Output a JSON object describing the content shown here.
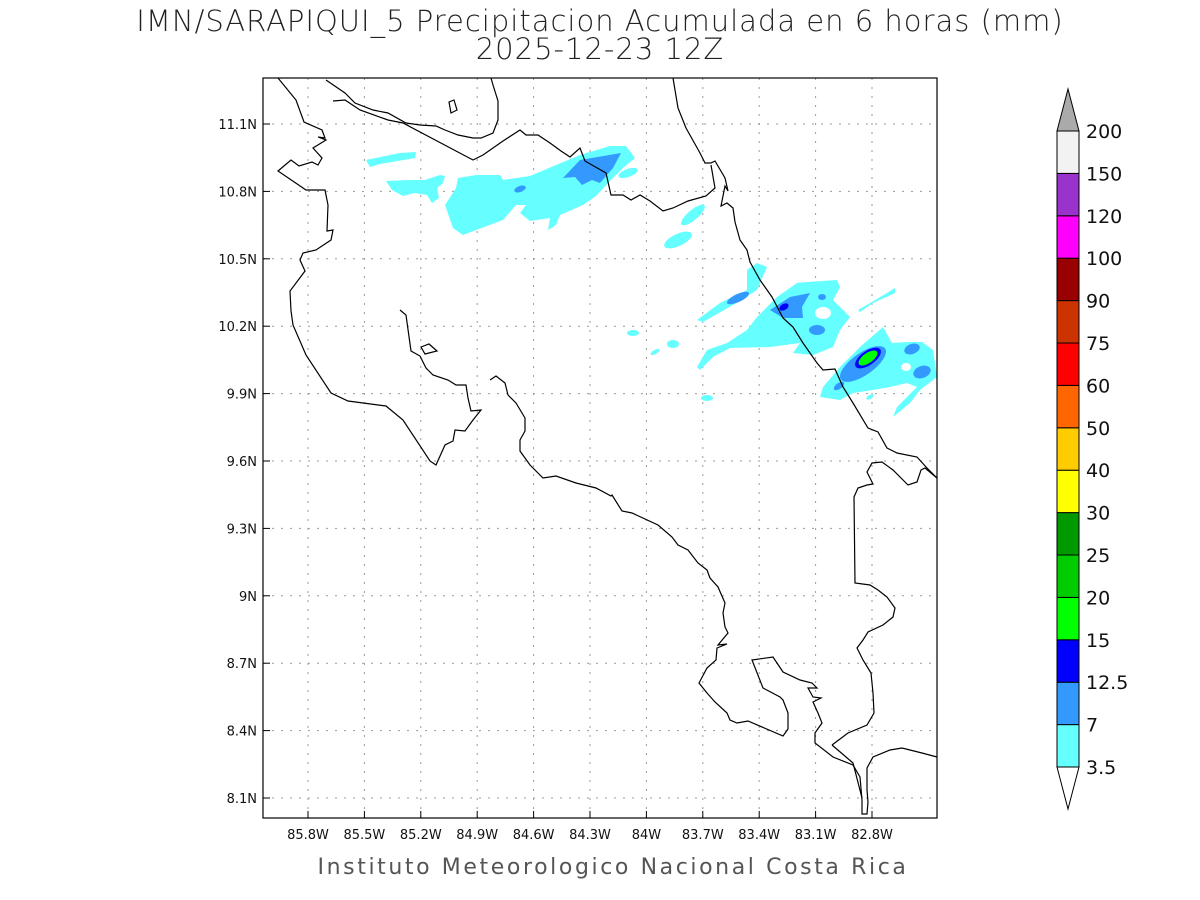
{
  "title": {
    "line1": "IMN/SARAPIQUI_5 Precipitacion Acumulada en 6 horas (mm)",
    "line2": "2025-12-23 12Z"
  },
  "footer": "Instituto Meteorologico Nacional Costa Rica",
  "map": {
    "lat_ticks": [
      "11.1N",
      "10.8N",
      "10.5N",
      "10.2N",
      "9.9N",
      "9.6N",
      "9.3N",
      "9N",
      "8.7N",
      "8.4N",
      "8.1N"
    ],
    "lon_ticks": [
      "85.8W",
      "85.5W",
      "85.2W",
      "84.9W",
      "84.6W",
      "84.3W",
      "84W",
      "83.7W",
      "83.4W",
      "83.1W",
      "82.8W"
    ]
  },
  "legend": {
    "labels": [
      "3.5",
      "7",
      "12.5",
      "15",
      "20",
      "25",
      "30",
      "40",
      "50",
      "60",
      "75",
      "90",
      "100",
      "120",
      "150",
      "200"
    ],
    "colors": [
      "#66ffff",
      "#3399ff",
      "#0000ff",
      "#00ff00",
      "#00cc00",
      "#009900",
      "#ffff00",
      "#ffcc00",
      "#ff6600",
      "#ff0000",
      "#cc3300",
      "#990000",
      "#ff00ff",
      "#9933cc",
      "#f2f2f2"
    ],
    "over_color": "#aaaaaa",
    "under_color": "#ffffff"
  }
}
